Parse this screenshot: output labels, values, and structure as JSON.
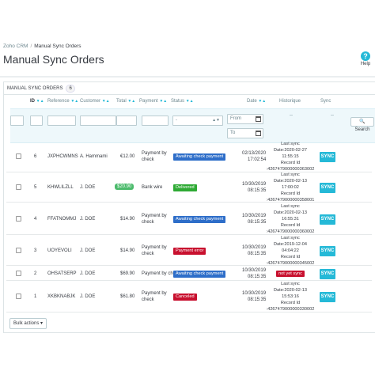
{
  "breadcrumb": {
    "parent": "Zoho CRM",
    "current": "Manual Sync Orders"
  },
  "page_title": "Manual Sync Orders",
  "help": {
    "label": "Help",
    "icon": "question-icon"
  },
  "panel": {
    "heading": "MANUAL SYNC ORDERS",
    "count": "6"
  },
  "columns": {
    "id": "ID",
    "reference": "Reference",
    "customer": "Customer",
    "total": "Total",
    "payment": "Payment",
    "status": "Status",
    "date": "Date",
    "historique": "Historique",
    "sync": "Sync"
  },
  "filters": {
    "status_value": "-",
    "date_from": "From",
    "date_to": "To",
    "historique_value": "--",
    "sync_value": "--",
    "search_label": "Search"
  },
  "rows": [
    {
      "id": "6",
      "reference": "JXPHCWMNS",
      "customer": "A. Hammami",
      "total": "€12.00",
      "payment1": "Payment by",
      "payment2": "check",
      "status": "Awaiting check payment",
      "date1": "02/13/2020",
      "date2": "17:02:54",
      "h1": "Last sync",
      "h2": "Date:2020-02-27",
      "h3": "11:55:15",
      "h4": "Record Id",
      "h5": ":4267479000000363002",
      "sync": "SYNC"
    },
    {
      "id": "5",
      "reference": "KHWLILZLL",
      "customer": "J. DOE",
      "total": "$20.90",
      "payment1": "Bank wire",
      "payment2": "",
      "status": "Delivered",
      "date1": "10/30/2019",
      "date2": "08:15:35",
      "h1": "Last sync",
      "h2": "Date:2020-02-13",
      "h3": "17:00:02",
      "h4": "Record Id",
      "h5": ":4267479000000358001",
      "sync": "SYNC"
    },
    {
      "id": "4",
      "reference": "FFATNOMMJ",
      "customer": "J. DOE",
      "total": "$14.90",
      "payment1": "Payment by",
      "payment2": "check",
      "status": "Awaiting check payment",
      "date1": "10/30/2019",
      "date2": "08:15:35",
      "h1": "Last sync",
      "h2": "Date:2020-02-13",
      "h3": "16:55:31",
      "h4": "Record Id",
      "h5": ":4267479000000360002",
      "sync": "SYNC"
    },
    {
      "id": "3",
      "reference": "UOYEVOLI",
      "customer": "J. DOE",
      "total": "$14.90",
      "payment1": "Payment by",
      "payment2": "check",
      "status": "Payment error",
      "date1": "10/30/2019",
      "date2": "08:15:35",
      "h1": "Last sync",
      "h2": "Date:2019-12-04",
      "h3": "04:04:22",
      "h4": "Record Id",
      "h5": ":4267479000000345002",
      "sync": "SYNC"
    },
    {
      "id": "2",
      "reference": "OHSATSERP",
      "customer": "J. DOE",
      "total": "$69.90",
      "payment1": "Payment by check",
      "payment2": "",
      "status": "Awaiting check payment",
      "date1": "10/30/2019",
      "date2": "08:15:35",
      "h1": "not yet sync",
      "sync": "SYNC"
    },
    {
      "id": "1",
      "reference": "XKBKNABJK",
      "customer": "J. DOE",
      "total": "$61.80",
      "payment1": "Payment by",
      "payment2": "check",
      "status": "Canceled",
      "date1": "10/30/2019",
      "date2": "08:15:35",
      "h1": "Last sync",
      "h2": "Date:2020-02-13",
      "h3": "15:53:16",
      "h4": "Record Id",
      "h5": ":4267479000000330002",
      "sync": "SYNC"
    }
  ],
  "bulk_actions": "Bulk actions",
  "colors": {
    "accent": "#25b9d7",
    "awaiting": "#2e6ec9",
    "delivered": "#2eaa34",
    "error": "#c8102e"
  }
}
